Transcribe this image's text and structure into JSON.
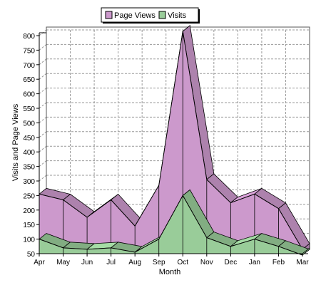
{
  "chart_data": {
    "type": "area",
    "categories": [
      "Apr",
      "May",
      "Jun",
      "Jul",
      "Aug",
      "Sep",
      "Oct",
      "Nov",
      "Dec",
      "Jan",
      "Feb",
      "Mar"
    ],
    "series": [
      {
        "name": "Page Views",
        "values": [
          255,
          235,
          175,
          235,
          145,
          285,
          815,
          305,
          225,
          255,
          205,
          65
        ],
        "color": "#cc99cc"
      },
      {
        "name": "Visits",
        "values": [
          100,
          70,
          65,
          70,
          55,
          100,
          250,
          105,
          75,
          100,
          75,
          30
        ],
        "color": "#99cc99"
      }
    ],
    "xlabel": "Month",
    "ylabel": "Visits and Page Views",
    "ylim": [
      50,
      800
    ],
    "yticks": [
      50,
      100,
      150,
      200,
      250,
      300,
      350,
      400,
      450,
      500,
      550,
      600,
      650,
      700,
      750,
      800
    ],
    "grid": true,
    "legend_position": "top-center",
    "style": "3d-stacked-area"
  }
}
